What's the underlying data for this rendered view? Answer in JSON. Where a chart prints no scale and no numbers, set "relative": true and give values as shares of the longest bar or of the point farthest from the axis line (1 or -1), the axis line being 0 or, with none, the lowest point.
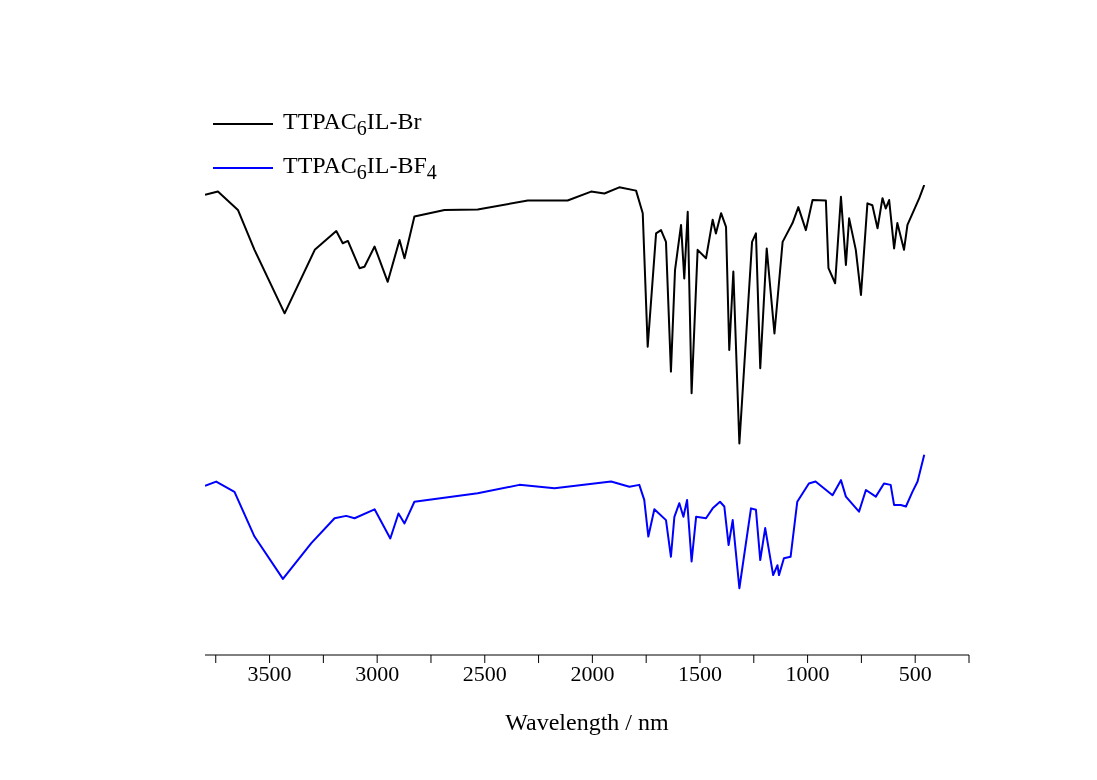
{
  "chart_data": {
    "type": "line",
    "relative": true,
    "xlabel": "Wavelength / nm",
    "legend": "top left",
    "grid": false,
    "marker": "none",
    "line_style": "solid",
    "xlim": [
      3800,
      250
    ],
    "xticks": [
      {
        "value": 3750,
        "label": null
      },
      3500,
      {
        "value": 3250,
        "label": null
      },
      3000,
      {
        "value": 2750,
        "label": null
      },
      2500,
      {
        "value": 2250,
        "label": null
      },
      2000,
      {
        "value": 1750,
        "label": null
      },
      1500,
      {
        "value": 1250,
        "label": null
      },
      1000,
      {
        "value": 750,
        "label": null
      },
      500,
      {
        "value": 250,
        "label": null
      }
    ],
    "series": [
      {
        "name": "TTPAC$_{6}$IL-Br",
        "color": "#000000",
        "x": [
          3800,
          3740,
          3647,
          3570,
          3430,
          3290,
          3190,
          3160,
          3136,
          3082,
          3059,
          3012,
          2951,
          2896,
          2873,
          2827,
          2687,
          2533,
          2300,
          2115,
          2006,
          1944,
          1875,
          1797,
          1766,
          1743,
          1704,
          1681,
          1658,
          1635,
          1616,
          1588,
          1573,
          1557,
          1539,
          1511,
          1472,
          1441,
          1426,
          1402,
          1379,
          1364,
          1345,
          1317,
          1258,
          1240,
          1220,
          1190,
          1154,
          1116,
          1070,
          1043,
          1008,
          977,
          915,
          903,
          872,
          845,
          822,
          807,
          776,
          752,
          722,
          699,
          675,
          652,
          637,
          621,
          598,
          583,
          552,
          536,
          481,
          458
        ],
        "values": [
          0.979,
          0.986,
          0.947,
          0.862,
          0.727,
          0.862,
          0.902,
          0.876,
          0.881,
          0.823,
          0.826,
          0.869,
          0.794,
          0.883,
          0.844,
          0.933,
          0.947,
          0.948,
          0.967,
          0.967,
          0.986,
          0.982,
          0.995,
          0.988,
          0.94,
          0.656,
          0.897,
          0.904,
          0.879,
          0.603,
          0.819,
          0.915,
          0.801,
          0.943,
          0.557,
          0.862,
          0.844,
          0.926,
          0.897,
          0.94,
          0.911,
          0.649,
          0.816,
          0.45,
          0.879,
          0.897,
          0.61,
          0.865,
          0.684,
          0.879,
          0.919,
          0.953,
          0.904,
          0.968,
          0.967,
          0.823,
          0.791,
          0.975,
          0.83,
          0.929,
          0.862,
          0.766,
          0.961,
          0.957,
          0.908,
          0.972,
          0.95,
          0.968,
          0.865,
          0.919,
          0.862,
          0.915,
          0.972,
          1.0
        ]
      },
      {
        "name": "TTPAC$_{6}$IL-BF$_{4}$",
        "color": "#0000ff",
        "x": [
          3800,
          3748,
          3663,
          3570,
          3438,
          3306,
          3198,
          3144,
          3105,
          3012,
          2939,
          2901,
          2873,
          2827,
          2533,
          2339,
          2176,
          1913,
          1828,
          1782,
          1759,
          1740,
          1712,
          1658,
          1635,
          1619,
          1596,
          1577,
          1560,
          1539,
          1518,
          1472,
          1441,
          1407,
          1387,
          1367,
          1348,
          1317,
          1263,
          1240,
          1220,
          1197,
          1160,
          1140,
          1133,
          1110,
          1079,
          1048,
          994,
          963,
          884,
          845,
          822,
          761,
          729,
          683,
          645,
          614,
          598,
          567,
          543,
          513,
          489,
          458
        ],
        "values": [
          0.36,
          0.369,
          0.347,
          0.252,
          0.162,
          0.238,
          0.291,
          0.296,
          0.291,
          0.31,
          0.248,
          0.301,
          0.28,
          0.326,
          0.344,
          0.362,
          0.355,
          0.369,
          0.358,
          0.362,
          0.33,
          0.252,
          0.31,
          0.287,
          0.209,
          0.294,
          0.323,
          0.294,
          0.33,
          0.199,
          0.294,
          0.291,
          0.312,
          0.326,
          0.316,
          0.234,
          0.287,
          0.142,
          0.312,
          0.309,
          0.202,
          0.27,
          0.17,
          0.191,
          0.17,
          0.206,
          0.209,
          0.326,
          0.365,
          0.369,
          0.34,
          0.372,
          0.337,
          0.305,
          0.351,
          0.337,
          0.365,
          0.362,
          0.319,
          0.319,
          0.316,
          0.347,
          0.369,
          0.426
        ]
      }
    ]
  }
}
